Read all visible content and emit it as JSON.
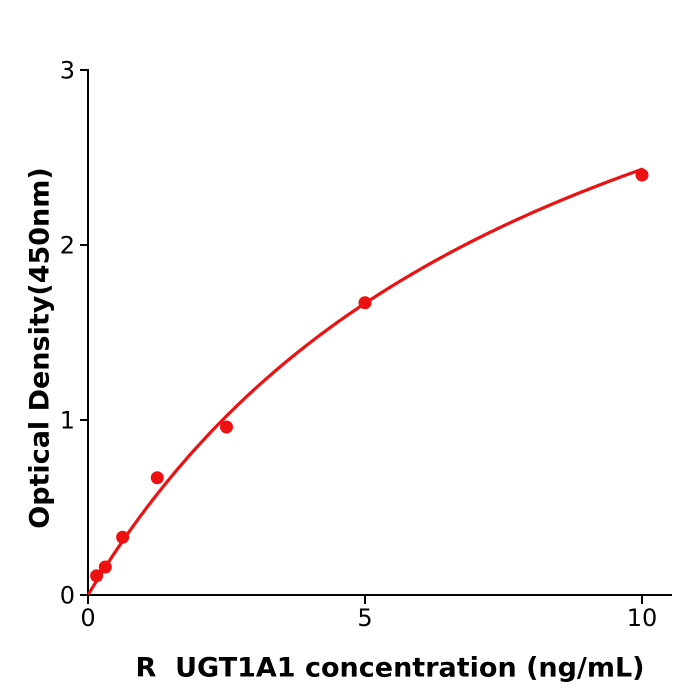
{
  "chart_data": {
    "type": "scatter",
    "title": "",
    "xlabel": "R  UGT1A1 concentration (ng/mL)",
    "ylabel": "Optical Density(450nm)",
    "xlim": [
      0,
      10.55
    ],
    "ylim": [
      0,
      3
    ],
    "x_ticks": [
      0,
      5,
      10
    ],
    "x_tick_labels": [
      "0",
      "5",
      "10"
    ],
    "y_ticks": [
      0,
      1,
      2,
      3
    ],
    "y_tick_labels": [
      "0",
      "1",
      "2",
      "3"
    ],
    "grid": false,
    "legend": "none",
    "series": [
      {
        "name": "standard-data-points",
        "type": "scatter",
        "color": "#ee1111",
        "x": [
          0.156,
          0.3125,
          0.625,
          1.25,
          2.5,
          5,
          10
        ],
        "y": [
          0.11,
          0.16,
          0.33,
          0.67,
          0.96,
          1.67,
          2.4
        ]
      },
      {
        "name": "fitted-standard-curve",
        "type": "line",
        "color": "#ee1111",
        "fit_model": "saturation curve y = vmax*x/(km+x)",
        "vmax": 4.5,
        "km": 8.5,
        "x_range": [
          0.02,
          10
        ]
      }
    ],
    "colors": {
      "background": "#ffffff",
      "axis": "#000000",
      "accent": "#ee1111"
    }
  }
}
